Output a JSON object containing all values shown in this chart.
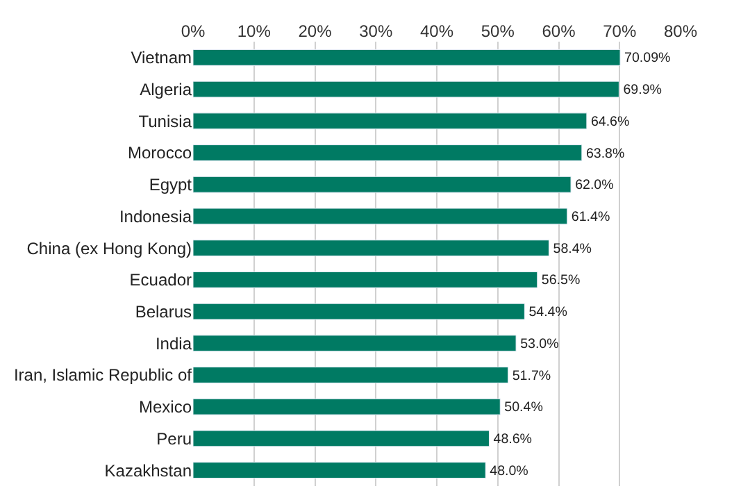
{
  "chart_data": {
    "type": "bar",
    "orientation": "horizontal",
    "categories": [
      "Vietnam",
      "Algeria",
      "Tunisia",
      "Morocco",
      "Egypt",
      "Indonesia",
      "China (ex Hong Kong)",
      "Ecuador",
      "Belarus",
      "India",
      "Iran, Islamic Republic of",
      "Mexico",
      "Peru",
      "Kazakhstan"
    ],
    "values": [
      70.09,
      69.9,
      64.6,
      63.8,
      62.0,
      61.4,
      58.4,
      56.5,
      54.4,
      53.0,
      51.7,
      50.4,
      48.6,
      48.0
    ],
    "value_labels": [
      "70.09%",
      "69.9%",
      "64.6%",
      "63.8%",
      "62.0%",
      "61.4%",
      "58.4%",
      "56.5%",
      "54.4%",
      "53.0%",
      "51.7%",
      "50.4%",
      "48.6%",
      "48.0%"
    ],
    "color": "#007a63",
    "xlim": [
      0,
      80
    ],
    "xticks": [
      {
        "value": 0,
        "label": "0%"
      },
      {
        "value": 10,
        "label": "10%"
      },
      {
        "value": 20,
        "label": "20%"
      },
      {
        "value": 30,
        "label": "30%"
      },
      {
        "value": 40,
        "label": "40%"
      },
      {
        "value": 50,
        "label": "50%"
      },
      {
        "value": 60,
        "label": "60%"
      },
      {
        "value": 70,
        "label": "70%"
      },
      {
        "value": 80,
        "label": "80%"
      }
    ],
    "grid": "x"
  }
}
